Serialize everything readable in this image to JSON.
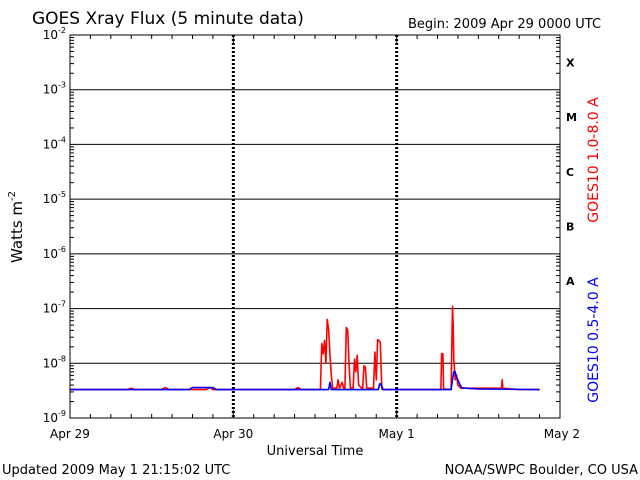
{
  "chart_data": {
    "type": "line",
    "title": "GOES Xray Flux (5 minute data)",
    "begin_label": "Begin:  2009 Apr 29 0000 UTC",
    "xlabel": "Universal Time",
    "ylabel": "Watts m",
    "ylabel_sup": "-2",
    "yscale": "log",
    "ylim": [
      1e-09,
      0.01
    ],
    "xlim_hours": [
      0,
      72
    ],
    "y_ticks": [
      {
        "base": "10",
        "exp": "-9",
        "value": 1e-09
      },
      {
        "base": "10",
        "exp": "-8",
        "value": 1e-08
      },
      {
        "base": "10",
        "exp": "-7",
        "value": 1e-07
      },
      {
        "base": "10",
        "exp": "-6",
        "value": 1e-06
      },
      {
        "base": "10",
        "exp": "-5",
        "value": 1e-05
      },
      {
        "base": "10",
        "exp": "-4",
        "value": 0.0001
      },
      {
        "base": "10",
        "exp": "-3",
        "value": 0.001
      },
      {
        "base": "10",
        "exp": "-2",
        "value": 0.01
      }
    ],
    "x_ticks": [
      {
        "label": "Apr 29",
        "hour": 0
      },
      {
        "label": "Apr 30",
        "hour": 24
      },
      {
        "label": "May 1",
        "hour": 48
      },
      {
        "label": "May 2",
        "hour": 72
      }
    ],
    "flare_classes": [
      {
        "label": "A",
        "value": 1e-07
      },
      {
        "label": "B",
        "value": 1e-06
      },
      {
        "label": "C",
        "value": 1e-05
      },
      {
        "label": "M",
        "value": 0.0001
      },
      {
        "label": "X",
        "value": 0.001
      }
    ],
    "series": [
      {
        "name": "GOES10 1.0-8.0 A",
        "color": "#ff0000",
        "points": [
          [
            0,
            3.3e-09
          ],
          [
            8.5,
            3.3e-09
          ],
          [
            9,
            3.5e-09
          ],
          [
            9.5,
            3.3e-09
          ],
          [
            13.5,
            3.3e-09
          ],
          [
            14,
            3.6e-09
          ],
          [
            14.5,
            3.3e-09
          ],
          [
            20,
            3.3e-09
          ],
          [
            20.5,
            3.6e-09
          ],
          [
            21,
            3.3e-09
          ],
          [
            33,
            3.3e-09
          ],
          [
            33.5,
            3.6e-09
          ],
          [
            34,
            3.3e-09
          ],
          [
            36.8,
            3.3e-09
          ],
          [
            37,
            2.3e-08
          ],
          [
            37.2,
            1.5e-08
          ],
          [
            37.4,
            2.6e-08
          ],
          [
            37.6,
            1e-08
          ],
          [
            37.8,
            6.3e-08
          ],
          [
            38,
            4.2e-08
          ],
          [
            38.2,
            1.4e-08
          ],
          [
            38.4,
            6e-09
          ],
          [
            38.6,
            3.5e-09
          ],
          [
            39.2,
            3.5e-09
          ],
          [
            39.4,
            5e-09
          ],
          [
            39.6,
            3.5e-09
          ],
          [
            40.0,
            4.5e-09
          ],
          [
            40.2,
            3.5e-09
          ],
          [
            40.4,
            3.4e-09
          ],
          [
            40.6,
            4.5e-08
          ],
          [
            40.8,
            4e-08
          ],
          [
            41,
            1e-08
          ],
          [
            41.2,
            3.5e-09
          ],
          [
            41.6,
            3.5e-09
          ],
          [
            41.8,
            1.2e-08
          ],
          [
            42,
            7e-09
          ],
          [
            42.2,
            1.4e-08
          ],
          [
            42.4,
            4e-09
          ],
          [
            43.0,
            3.4e-09
          ],
          [
            43.2,
            9e-09
          ],
          [
            43.4,
            8.5e-09
          ],
          [
            43.6,
            3.5e-09
          ],
          [
            44.6,
            3.5e-09
          ],
          [
            44.8,
            1.6e-08
          ],
          [
            45.0,
            5e-09
          ],
          [
            45.2,
            2.7e-08
          ],
          [
            45.4,
            2.6e-08
          ],
          [
            45.6,
            2.4e-08
          ],
          [
            45.8,
            4e-09
          ],
          [
            46,
            3.3e-09
          ],
          [
            54.5,
            3.3e-09
          ],
          [
            54.6,
            1.5e-08
          ],
          [
            54.8,
            1.5e-08
          ],
          [
            54.9,
            3.4e-09
          ],
          [
            56,
            3.3e-09
          ],
          [
            56.2,
            1.1e-07
          ],
          [
            56.3,
            5e-08
          ],
          [
            56.4,
            1.2e-08
          ],
          [
            56.6,
            5e-09
          ],
          [
            56.8,
            6e-09
          ],
          [
            57,
            4e-09
          ],
          [
            57.4,
            3.5e-09
          ],
          [
            63.4,
            3.5e-09
          ],
          [
            63.5,
            5e-09
          ],
          [
            63.6,
            3.5e-09
          ],
          [
            66,
            3.3e-09
          ],
          [
            69,
            3.3e-09
          ]
        ]
      },
      {
        "name": "GOES10 0.5-4.0 A",
        "color": "#0000ff",
        "points": [
          [
            0,
            3.3e-09
          ],
          [
            17.5,
            3.3e-09
          ],
          [
            18,
            3.6e-09
          ],
          [
            21,
            3.6e-09
          ],
          [
            21.5,
            3.3e-09
          ],
          [
            38,
            3.3e-09
          ],
          [
            38.2,
            4.5e-09
          ],
          [
            38.4,
            3.3e-09
          ],
          [
            45.3,
            3.3e-09
          ],
          [
            45.5,
            4.2e-09
          ],
          [
            45.7,
            4.2e-09
          ],
          [
            45.9,
            3.3e-09
          ],
          [
            56.0,
            3.3e-09
          ],
          [
            56.2,
            5e-09
          ],
          [
            56.4,
            7e-09
          ],
          [
            56.6,
            7e-09
          ],
          [
            56.8,
            5.5e-09
          ],
          [
            57,
            5e-09
          ],
          [
            57.3,
            4e-09
          ],
          [
            57.6,
            3.6e-09
          ],
          [
            58,
            3.5e-09
          ],
          [
            60,
            3.4e-09
          ],
          [
            69,
            3.3e-09
          ]
        ]
      }
    ]
  },
  "footer": {
    "updated": "Updated 2009 May  1 21:15:02 UTC",
    "credit": "NOAA/SWPC Boulder, CO USA"
  }
}
